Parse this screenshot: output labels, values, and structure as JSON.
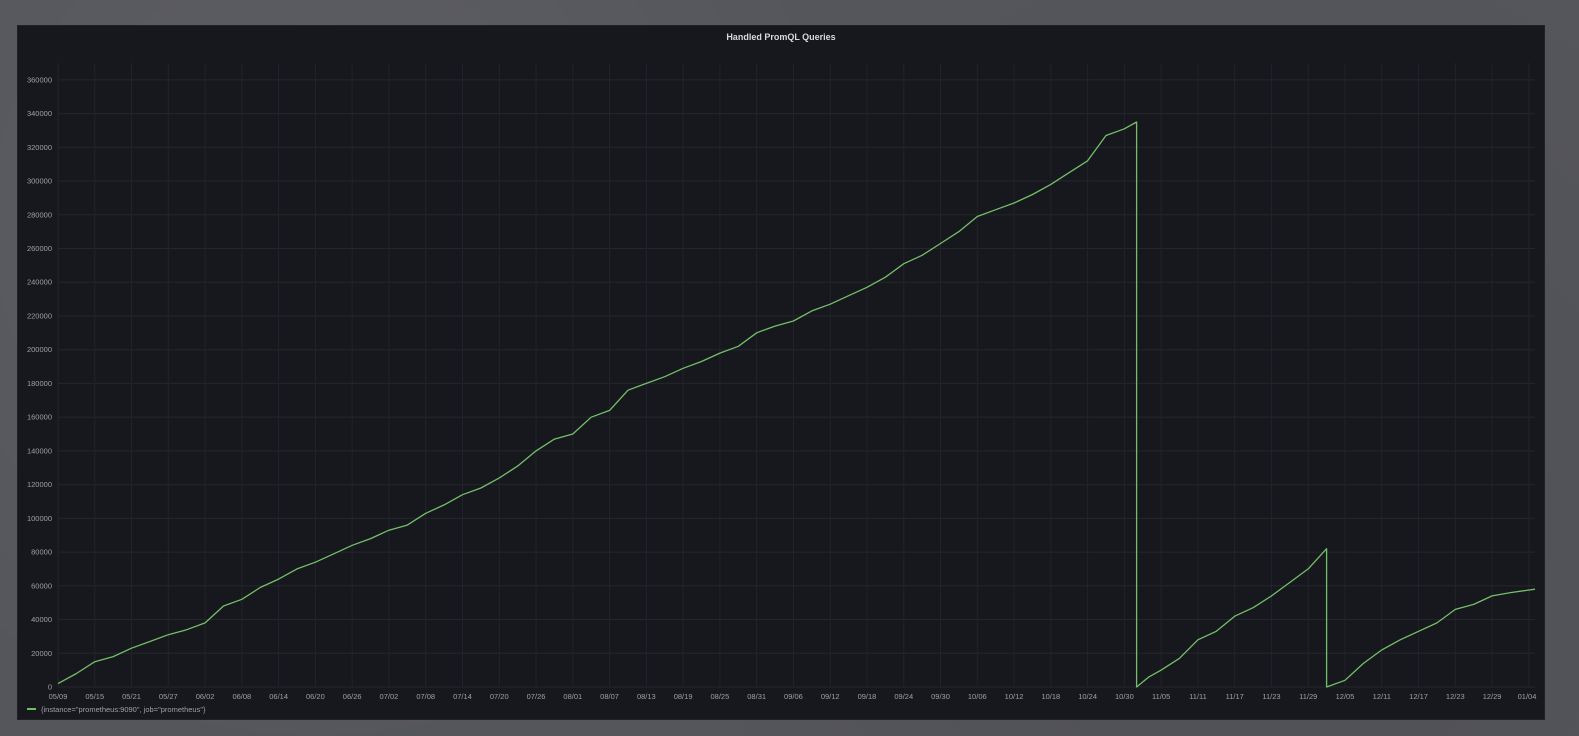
{
  "chart_data": {
    "type": "line",
    "title": "Handled PromQL Queries",
    "xlabel": "",
    "ylabel": "",
    "ylim": [
      0,
      370000
    ],
    "yticks": [
      0,
      20000,
      40000,
      60000,
      80000,
      100000,
      120000,
      140000,
      160000,
      180000,
      200000,
      220000,
      240000,
      260000,
      280000,
      300000,
      320000,
      340000,
      360000
    ],
    "xrange": [
      "05/09",
      "01/05"
    ],
    "xticks": [
      "05/09",
      "05/15",
      "05/21",
      "05/27",
      "06/02",
      "06/08",
      "06/14",
      "06/20",
      "06/26",
      "07/02",
      "07/08",
      "07/14",
      "07/20",
      "07/26",
      "08/01",
      "08/07",
      "08/13",
      "08/19",
      "08/25",
      "08/31",
      "09/06",
      "09/12",
      "09/18",
      "09/24",
      "09/30",
      "10/06",
      "10/12",
      "10/18",
      "10/24",
      "10/30",
      "11/05",
      "11/11",
      "11/17",
      "11/23",
      "11/29",
      "12/05",
      "12/11",
      "12/17",
      "12/23",
      "12/29",
      "01/04"
    ],
    "grid": true,
    "legend_position": "bottom-left",
    "series": [
      {
        "name": "{instance=\"prometheus:9090\", job=\"prometheus\"}",
        "color": "#73bf69",
        "points": [
          [
            "05/09",
            2000
          ],
          [
            "05/12",
            8000
          ],
          [
            "05/15",
            15000
          ],
          [
            "05/18",
            18000
          ],
          [
            "05/21",
            23000
          ],
          [
            "05/24",
            27000
          ],
          [
            "05/27",
            31000
          ],
          [
            "05/30",
            34000
          ],
          [
            "06/02",
            38000
          ],
          [
            "06/05",
            48000
          ],
          [
            "06/08",
            52000
          ],
          [
            "06/11",
            59000
          ],
          [
            "06/14",
            64000
          ],
          [
            "06/17",
            70000
          ],
          [
            "06/20",
            74000
          ],
          [
            "06/23",
            79000
          ],
          [
            "06/26",
            84000
          ],
          [
            "06/29",
            88000
          ],
          [
            "07/02",
            93000
          ],
          [
            "07/05",
            96000
          ],
          [
            "07/08",
            103000
          ],
          [
            "07/11",
            108000
          ],
          [
            "07/14",
            114000
          ],
          [
            "07/17",
            118000
          ],
          [
            "07/20",
            124000
          ],
          [
            "07/23",
            131000
          ],
          [
            "07/26",
            140000
          ],
          [
            "07/29",
            147000
          ],
          [
            "08/01",
            150000
          ],
          [
            "08/04",
            160000
          ],
          [
            "08/07",
            164000
          ],
          [
            "08/10",
            176000
          ],
          [
            "08/13",
            180000
          ],
          [
            "08/16",
            184000
          ],
          [
            "08/19",
            189000
          ],
          [
            "08/22",
            193000
          ],
          [
            "08/25",
            198000
          ],
          [
            "08/28",
            202000
          ],
          [
            "08/31",
            210000
          ],
          [
            "09/03",
            214000
          ],
          [
            "09/06",
            217000
          ],
          [
            "09/09",
            223000
          ],
          [
            "09/12",
            227000
          ],
          [
            "09/15",
            232000
          ],
          [
            "09/18",
            237000
          ],
          [
            "09/21",
            243000
          ],
          [
            "09/24",
            251000
          ],
          [
            "09/27",
            256000
          ],
          [
            "09/30",
            263000
          ],
          [
            "10/03",
            270000
          ],
          [
            "10/06",
            279000
          ],
          [
            "10/09",
            283000
          ],
          [
            "10/12",
            287000
          ],
          [
            "10/15",
            292000
          ],
          [
            "10/18",
            298000
          ],
          [
            "10/21",
            305000
          ],
          [
            "10/24",
            312000
          ],
          [
            "10/27",
            327000
          ],
          [
            "10/30",
            331000
          ],
          [
            "11/01",
            335000
          ],
          [
            "11/01",
            0
          ],
          [
            "11/03",
            6000
          ],
          [
            "11/05",
            10000
          ],
          [
            "11/08",
            17000
          ],
          [
            "11/11",
            28000
          ],
          [
            "11/14",
            33000
          ],
          [
            "11/17",
            42000
          ],
          [
            "11/20",
            47000
          ],
          [
            "11/23",
            54000
          ],
          [
            "11/26",
            62000
          ],
          [
            "11/29",
            70000
          ],
          [
            "12/02",
            82000
          ],
          [
            "12/02",
            0
          ],
          [
            "12/05",
            4000
          ],
          [
            "12/08",
            14000
          ],
          [
            "12/11",
            22000
          ],
          [
            "12/14",
            28000
          ],
          [
            "12/17",
            33000
          ],
          [
            "12/20",
            38000
          ],
          [
            "12/23",
            46000
          ],
          [
            "12/26",
            49000
          ],
          [
            "12/29",
            54000
          ],
          [
            "01/01",
            56000
          ],
          [
            "01/05",
            58000
          ]
        ]
      }
    ]
  }
}
